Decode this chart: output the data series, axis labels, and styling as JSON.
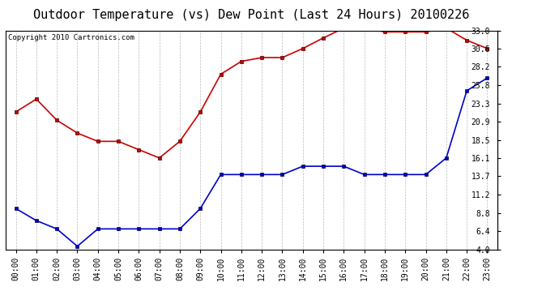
{
  "title": "Outdoor Temperature (vs) Dew Point (Last 24 Hours) 20100226",
  "copyright_text": "Copyright 2010 Cartronics.com",
  "x_labels": [
    "00:00",
    "01:00",
    "02:00",
    "03:00",
    "04:00",
    "05:00",
    "06:00",
    "07:00",
    "08:00",
    "09:00",
    "10:00",
    "11:00",
    "12:00",
    "13:00",
    "14:00",
    "15:00",
    "16:00",
    "17:00",
    "18:00",
    "19:00",
    "20:00",
    "21:00",
    "22:00",
    "23:00"
  ],
  "temp_data": [
    22.2,
    23.9,
    21.1,
    19.4,
    18.3,
    18.3,
    17.2,
    16.1,
    18.3,
    22.2,
    27.2,
    28.9,
    29.4,
    29.4,
    30.6,
    32.0,
    33.3,
    33.3,
    32.8,
    32.8,
    32.8,
    33.3,
    31.7,
    30.6
  ],
  "dew_data": [
    9.4,
    7.8,
    6.7,
    4.4,
    6.7,
    6.7,
    6.7,
    6.7,
    6.7,
    9.4,
    13.9,
    13.9,
    13.9,
    13.9,
    15.0,
    15.0,
    15.0,
    13.9,
    13.9,
    13.9,
    13.9,
    16.1,
    25.0,
    26.7
  ],
  "temp_color": "#cc0000",
  "dew_color": "#0000cc",
  "ylim": [
    4.0,
    33.0
  ],
  "yticks": [
    4.0,
    6.4,
    8.8,
    11.2,
    13.7,
    16.1,
    18.5,
    20.9,
    23.3,
    25.8,
    28.2,
    30.6,
    33.0
  ],
  "background_color": "#ffffff",
  "grid_color": "#aaaaaa",
  "title_fontsize": 11,
  "copyright_fontsize": 6.5,
  "tick_fontsize": 7,
  "marker_size": 3.0,
  "line_width": 1.2
}
